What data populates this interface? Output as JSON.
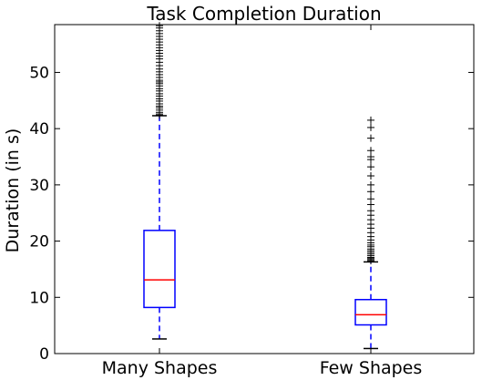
{
  "chart_data": {
    "type": "box",
    "title": "Task Completion Duration",
    "xlabel": "",
    "ylabel": "Duration (in s)",
    "ylim": [
      0,
      58.5
    ],
    "yticks": [
      0,
      10,
      20,
      30,
      40,
      50
    ],
    "grid": false,
    "colors": {
      "box": "#0000ff",
      "median": "#ff0000",
      "whisker": "#0000ff",
      "cap": "#000000",
      "flier": "#000000"
    },
    "categories": [
      "Many Shapes",
      "Few Shapes"
    ],
    "boxes": [
      {
        "category": "Many Shapes",
        "whisker_low": 2.6,
        "q1": 8.2,
        "median": 13.1,
        "q3": 21.9,
        "whisker_high": 42.3,
        "fliers": [
          42.4,
          42.6,
          42.9,
          43.3,
          43.7,
          44.0,
          44.4,
          44.9,
          45.3,
          45.8,
          46.2,
          46.7,
          47.1,
          47.6,
          48.0,
          48.3,
          48.6,
          49.1,
          49.6,
          50.1,
          50.6,
          51.2,
          51.8,
          52.4,
          52.9,
          53.4,
          53.9,
          54.4,
          54.9,
          55.4,
          55.9,
          56.4,
          56.9,
          57.4,
          57.9,
          58.3
        ]
      },
      {
        "category": "Few Shapes",
        "whisker_low": 0.9,
        "q1": 5.1,
        "median": 6.9,
        "q3": 9.6,
        "whisker_high": 16.3,
        "fliers": [
          16.5,
          16.7,
          16.9,
          17.1,
          17.4,
          17.7,
          18.0,
          18.3,
          18.6,
          19.0,
          19.3,
          19.7,
          20.2,
          20.8,
          21.5,
          22.3,
          23.0,
          23.8,
          24.6,
          25.4,
          26.5,
          27.5,
          28.8,
          30.0,
          31.6,
          33.2,
          34.5,
          35.0,
          36.1,
          38.3,
          40.2,
          41.5
        ]
      }
    ]
  }
}
